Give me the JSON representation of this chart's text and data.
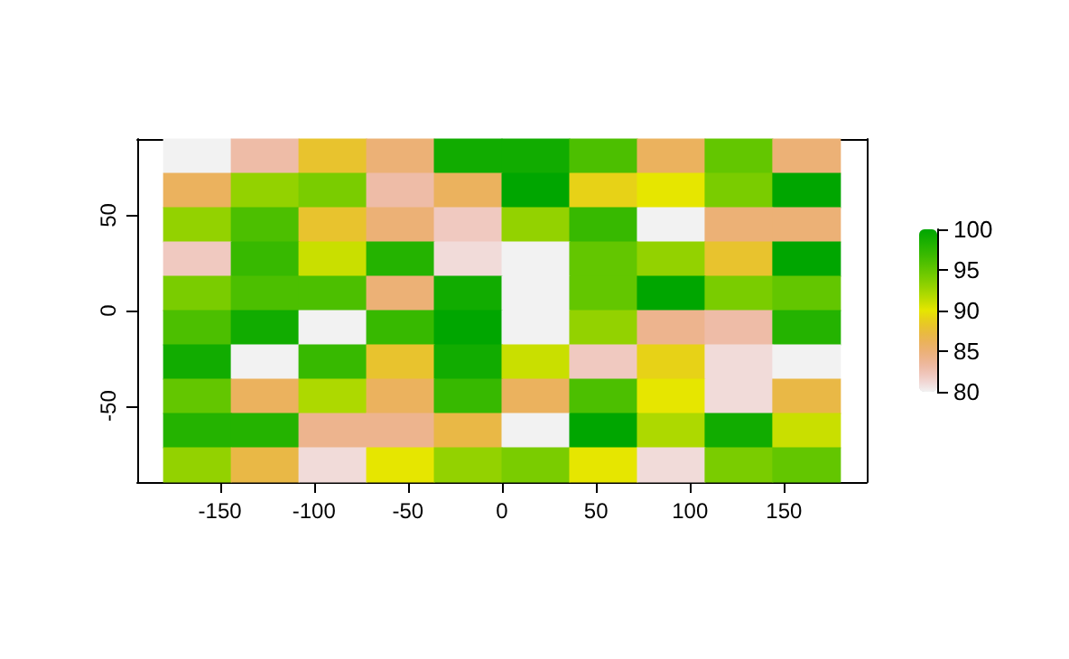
{
  "chart_data": {
    "type": "heatmap",
    "x": [
      -162,
      -126,
      -90,
      -54,
      -18,
      18,
      54,
      90,
      126,
      162
    ],
    "cells": [
      [
        80,
        83,
        88,
        85,
        99,
        99,
        96,
        86,
        95,
        85
      ],
      [
        86,
        93,
        94,
        83,
        86,
        100,
        89,
        90,
        94,
        100
      ],
      [
        93,
        96,
        88,
        85,
        82,
        93,
        97,
        80,
        85,
        85
      ],
      [
        82,
        97,
        91,
        98,
        81,
        80,
        95,
        93,
        88,
        100
      ],
      [
        94,
        96,
        96,
        85,
        99,
        80,
        95,
        100,
        94,
        95
      ],
      [
        96,
        99,
        80,
        97,
        100,
        80,
        93,
        84,
        83,
        98
      ],
      [
        99,
        80,
        97,
        88,
        99,
        91,
        82,
        89,
        81,
        80
      ],
      [
        95,
        86,
        92,
        86,
        97,
        86,
        96,
        90,
        81,
        87
      ],
      [
        98,
        98,
        84,
        84,
        87,
        80,
        100,
        92,
        99,
        91
      ],
      [
        93,
        87,
        81,
        90,
        93,
        94,
        90,
        81,
        94,
        95
      ]
    ],
    "xlim": [
      -194,
      194
    ],
    "xticks": [
      -150,
      -100,
      -50,
      0,
      50,
      100,
      150
    ],
    "ylim": [
      -90,
      90
    ],
    "yticks": [
      -50,
      0,
      50
    ],
    "clim": [
      80,
      100
    ],
    "cticks": [
      80,
      85,
      90,
      95,
      100
    ]
  }
}
